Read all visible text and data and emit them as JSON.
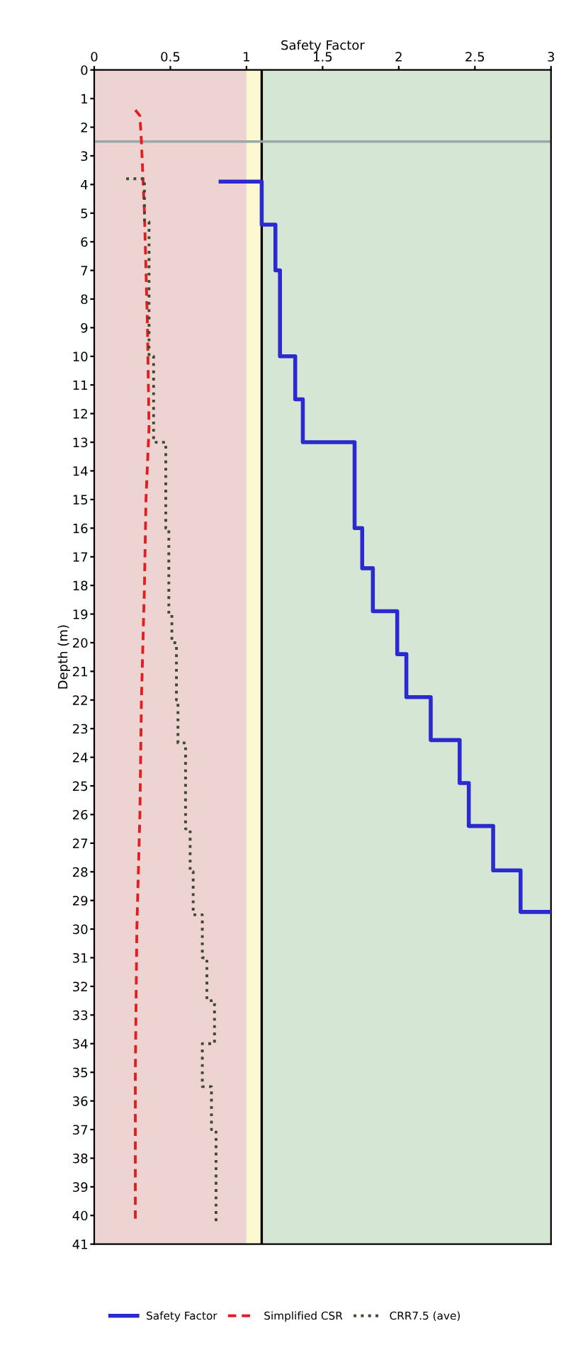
{
  "chart_data": {
    "type": "line",
    "xlabel": "Safety Factor",
    "ylabel": "Depth (m)",
    "xlim": [
      0,
      3
    ],
    "xticks": [
      0,
      0.5,
      1,
      1.5,
      2,
      2.5,
      3
    ],
    "ylim": [
      41,
      0
    ],
    "yticks": [
      0,
      1,
      2,
      3,
      4,
      5,
      6,
      7,
      8,
      9,
      10,
      11,
      12,
      13,
      14,
      15,
      16,
      17,
      18,
      19,
      20,
      21,
      22,
      23,
      24,
      25,
      26,
      27,
      28,
      29,
      30,
      31,
      32,
      33,
      34,
      35,
      36,
      37,
      38,
      39,
      40,
      41
    ],
    "legend": "bottom",
    "grid": false,
    "marker": "none",
    "bands": [
      {
        "axis": "x",
        "from": 0,
        "to": 1,
        "color": "#eed3d3"
      },
      {
        "axis": "x",
        "from": 1,
        "to": 1.1,
        "color": "#fbf8d2"
      },
      {
        "axis": "x",
        "from": 1.1,
        "to": 3,
        "color": "#d6e6d4"
      }
    ],
    "ref_lines": [
      {
        "axis": "x",
        "value": 1.1,
        "color": "#000000",
        "line_style": "solid"
      },
      {
        "axis": "y",
        "value": 2.5,
        "color": "#9aa8a8",
        "line_style": "solid"
      }
    ],
    "series": [
      {
        "name": "Safety Factor",
        "color": "#2a2ad0",
        "line_style": "solid",
        "x": [
          0.83,
          1.1,
          1.1,
          1.19,
          1.19,
          1.22,
          1.22,
          1.32,
          1.32,
          1.37,
          1.37,
          1.71,
          1.71,
          1.76,
          1.76,
          1.83,
          1.83,
          1.99,
          1.99,
          2.05,
          2.05,
          2.21,
          2.21,
          2.4,
          2.4,
          2.46,
          2.46,
          2.62,
          2.62,
          2.8,
          2.8,
          3.0
        ],
        "values": [
          3.9,
          3.9,
          5.4,
          5.4,
          7,
          7,
          10,
          10,
          11.5,
          11.5,
          13,
          13,
          16,
          16,
          17.4,
          17.4,
          18.9,
          18.9,
          20.4,
          20.4,
          21.9,
          21.9,
          23.4,
          23.4,
          24.9,
          24.9,
          26.4,
          26.4,
          27.95,
          27.95,
          29.4,
          29.4
        ]
      },
      {
        "name": "Simplified CSR",
        "color": "#e02020",
        "line_style": "dashed",
        "x": [
          0.27,
          0.3,
          0.31,
          0.33,
          0.35,
          0.36,
          0.34,
          0.33,
          0.31,
          0.3,
          0.28,
          0.27,
          0.27
        ],
        "values": [
          1.4,
          1.6,
          2.5,
          5,
          9,
          12.5,
          15,
          18,
          22,
          26,
          30,
          35,
          40.2
        ]
      },
      {
        "name": "CRR7.5 (ave)",
        "color": "#3c4a30",
        "line_style": "dotted",
        "x": [
          0.21,
          0.33,
          0.33,
          0.36,
          0.36,
          0.39,
          0.39,
          0.47,
          0.47,
          0.49,
          0.49,
          0.51,
          0.51,
          0.54,
          0.54,
          0.55,
          0.55,
          0.6,
          0.6,
          0.63,
          0.63,
          0.65,
          0.65,
          0.71,
          0.71,
          0.74,
          0.74,
          0.79,
          0.79,
          0.71,
          0.71,
          0.77,
          0.77,
          0.8,
          0.8
        ],
        "values": [
          3.8,
          3.8,
          5.3,
          5.3,
          10,
          10,
          13,
          13,
          16,
          16,
          19,
          19,
          20,
          20,
          22,
          22,
          23.5,
          23.5,
          26.5,
          26.5,
          28,
          28,
          29.5,
          29.5,
          31,
          31,
          32.5,
          32.5,
          34,
          34,
          35.5,
          35.5,
          37,
          37,
          40.3
        ]
      }
    ]
  }
}
